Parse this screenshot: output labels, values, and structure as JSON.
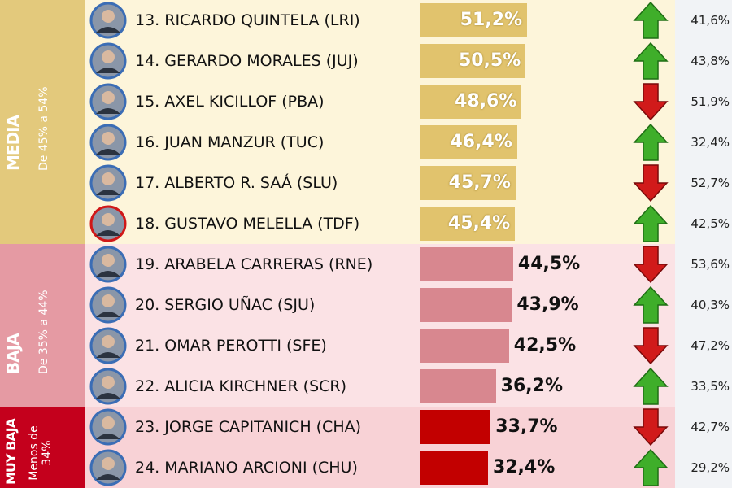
{
  "groups": [
    {
      "title": "MEDIA",
      "subtitle": "De 45% a 54%",
      "rows": 6,
      "band_color": "#e3c97c",
      "row_color": "#fdf5da",
      "bar_color": "#e1c36d",
      "label_inside": true
    },
    {
      "title": "BAJA",
      "subtitle": "De 35% a 44%",
      "rows": 4,
      "band_color": "#e59aa3",
      "row_color": "#fbe2e5",
      "bar_color": "#d8878f",
      "label_inside": false
    },
    {
      "title": "MUY BAJA",
      "subtitle": "Menos de 34%",
      "rows": 2,
      "band_color": "#c4001c",
      "row_color": "#f8d2d6",
      "bar_color": "#c20000",
      "label_inside": false
    }
  ],
  "rows": [
    {
      "name": "13. RICARDO QUINTELA (LRI)",
      "value": 51.2,
      "value_label": "51,2%",
      "trend": "up",
      "previous": 41.6,
      "previous_label": "41,6%"
    },
    {
      "name": "14. GERARDO MORALES (JUJ)",
      "value": 50.5,
      "value_label": "50,5%",
      "trend": "up",
      "previous": 43.8,
      "previous_label": "43,8%"
    },
    {
      "name": "15. AXEL KICILLOF (PBA)",
      "value": 48.6,
      "value_label": "48,6%",
      "trend": "down",
      "previous": 51.9,
      "previous_label": "51,9%"
    },
    {
      "name": "16. JUAN MANZUR (TUC)",
      "value": 46.4,
      "value_label": "46,4%",
      "trend": "up",
      "previous": 32.4,
      "previous_label": "32,4%"
    },
    {
      "name": "17.  ALBERTO R. SAÁ (SLU)",
      "value": 45.7,
      "value_label": "45,7%",
      "trend": "down",
      "previous": 52.7,
      "previous_label": "52,7%"
    },
    {
      "name": "18. GUSTAVO MELELLA (TDF)",
      "value": 45.4,
      "value_label": "45,4%",
      "trend": "up",
      "previous": 42.5,
      "previous_label": "42,5%"
    },
    {
      "name": "19. ARABELA CARRERAS (RNE)",
      "value": 44.5,
      "value_label": "44,5%",
      "trend": "down",
      "previous": 53.6,
      "previous_label": "53,6%"
    },
    {
      "name": "20. SERGIO UÑAC (SJU)",
      "value": 43.9,
      "value_label": "43,9%",
      "trend": "up",
      "previous": 40.3,
      "previous_label": "40,3%"
    },
    {
      "name": "21. OMAR PEROTTI (SFE)",
      "value": 42.5,
      "value_label": "42,5%",
      "trend": "down",
      "previous": 47.2,
      "previous_label": "47,2%"
    },
    {
      "name": "22. ALICIA KIRCHNER (SCR)",
      "value": 36.2,
      "value_label": "36,2%",
      "trend": "up",
      "previous": 33.5,
      "previous_label": "33,5%"
    },
    {
      "name": "23. JORGE CAPITANICH (CHA)",
      "value": 33.7,
      "value_label": "33,7%",
      "trend": "down",
      "previous": 42.7,
      "previous_label": "42,7%"
    },
    {
      "name": "24. MARIANO ARCIONI (CHU)",
      "value": 32.4,
      "value_label": "32,4%",
      "trend": "up",
      "previous": 29.2,
      "previous_label": "29,2%"
    }
  ]
}
